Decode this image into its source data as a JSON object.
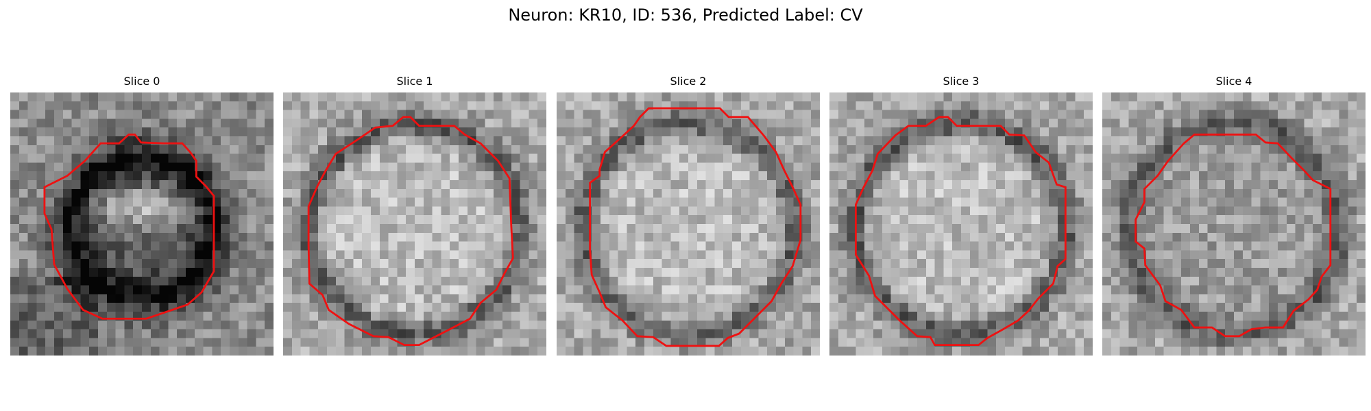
{
  "figure": {
    "title": "Neuron: KR10, ID: 536, Predicted Label: CV"
  },
  "colors": {
    "contour": "#ee1111",
    "background": "#ffffff"
  },
  "slices": [
    {
      "label": "Slice 0",
      "center_brightness": "bright-elongated",
      "ring_darkness": 0.8
    },
    {
      "label": "Slice 1",
      "center_brightness": "bright-round",
      "ring_darkness": 0.6
    },
    {
      "label": "Slice 2",
      "center_brightness": "bright-round",
      "ring_darkness": 0.55
    },
    {
      "label": "Slice 3",
      "center_brightness": "bright-round",
      "ring_darkness": 0.6
    },
    {
      "label": "Slice 4",
      "center_brightness": "mid-round",
      "ring_darkness": 0.6
    }
  ]
}
